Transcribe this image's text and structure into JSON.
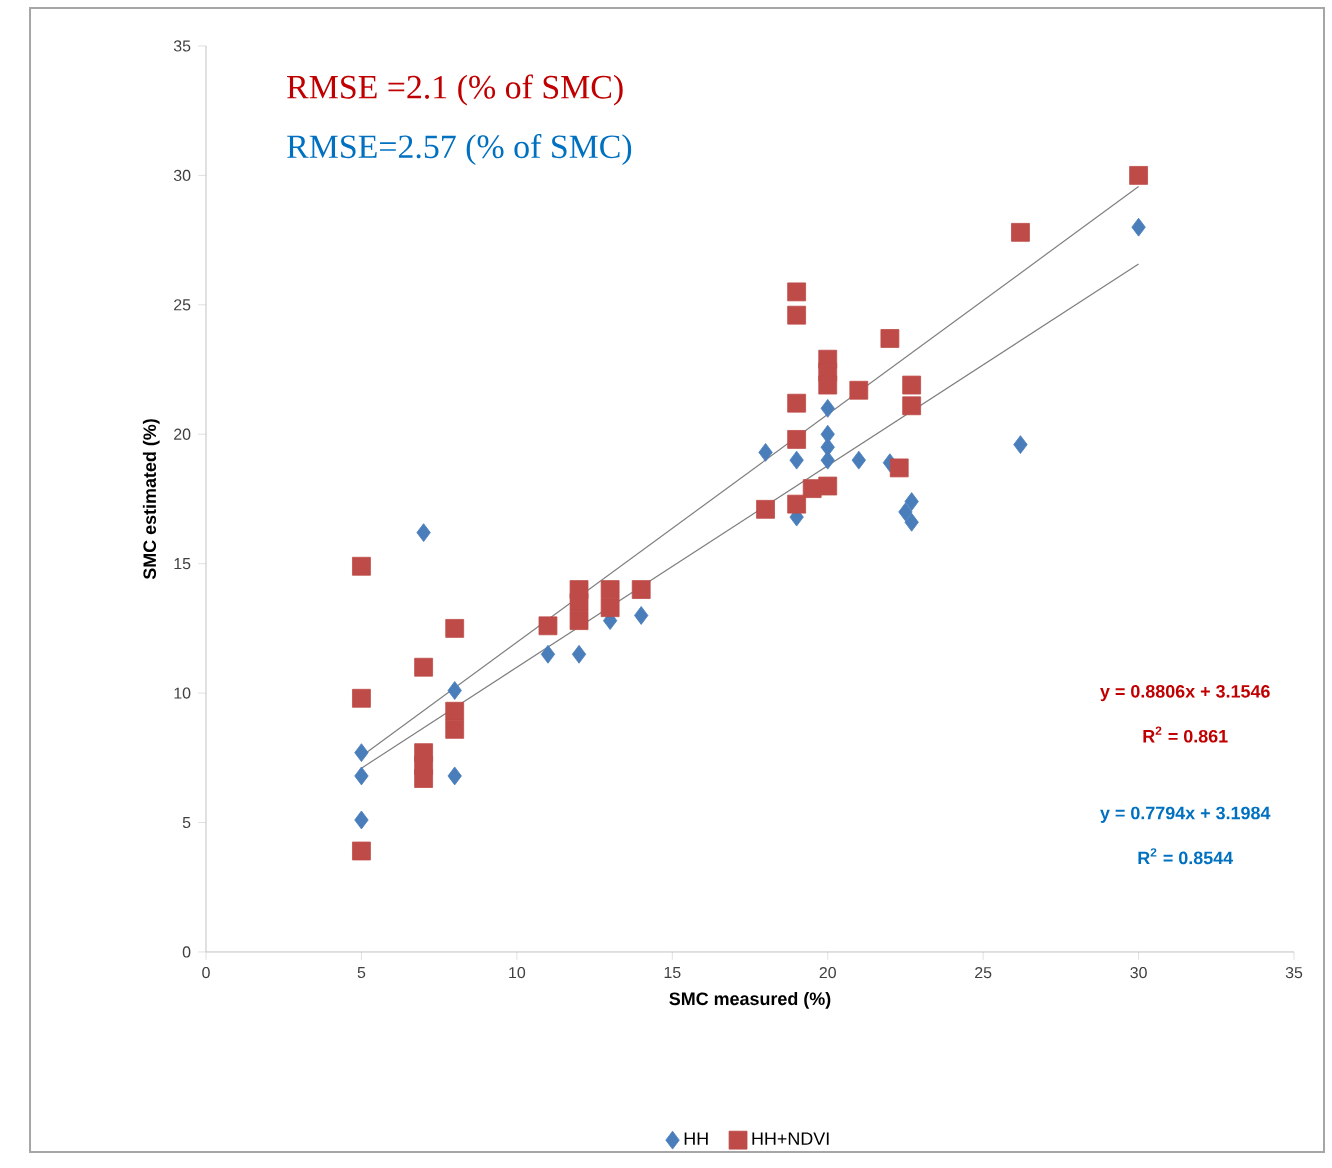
{
  "chart_data": {
    "type": "scatter",
    "xlabel": "SMC measured (%)",
    "ylabel": "SMC estimated (%)",
    "xlim": [
      0,
      35
    ],
    "ylim": [
      0,
      35
    ],
    "xticks": [
      0,
      5,
      10,
      15,
      20,
      25,
      30,
      35
    ],
    "yticks": [
      0,
      5,
      10,
      15,
      20,
      25,
      30,
      35
    ],
    "legend": "bottom",
    "series": [
      {
        "name": "HH",
        "color": "#4a7ebb",
        "marker": "diamond",
        "x": [
          5,
          5,
          5,
          7,
          8,
          8,
          11,
          12,
          13,
          14,
          18,
          19,
          19,
          20,
          20,
          20,
          20,
          21,
          22,
          22.5,
          22.7,
          22.7,
          26.2,
          30
        ],
        "values": [
          7.7,
          6.8,
          5.1,
          16.2,
          10.1,
          6.8,
          11.5,
          11.5,
          12.8,
          13,
          19.3,
          19,
          16.8,
          19.5,
          20,
          21,
          19,
          19,
          18.9,
          17,
          16.6,
          17.4,
          19.6,
          28
        ]
      },
      {
        "name": "HH+NDVI",
        "color": "#be4b48",
        "marker": "square",
        "x": [
          5,
          5,
          5,
          7,
          7,
          7,
          7,
          8,
          8,
          8,
          11,
          12,
          12,
          12,
          13,
          13,
          14,
          18,
          19,
          19,
          19,
          19,
          19,
          19.5,
          20,
          20,
          20,
          20,
          21,
          22,
          22.3,
          22.7,
          22.7,
          26.2,
          30
        ],
        "values": [
          14.9,
          9.8,
          3.9,
          11,
          7.7,
          7.2,
          6.7,
          12.5,
          9.3,
          8.6,
          12.6,
          14,
          13.5,
          12.8,
          14,
          13.3,
          14,
          17.1,
          25.5,
          24.6,
          21.2,
          19.8,
          17.3,
          17.9,
          22.9,
          22.4,
          21.9,
          18,
          21.7,
          23.7,
          18.7,
          21.9,
          21.1,
          27.8,
          30
        ]
      },
      {
        "type": "line",
        "color": "#7f7f7f",
        "x": [
          5,
          30
        ],
        "values": [
          7.56,
          29.57
        ]
      },
      {
        "type": "line",
        "color": "#7f7f7f",
        "x": [
          5,
          30
        ],
        "values": [
          7.1,
          26.58
        ]
      }
    ],
    "annotations": [
      "RMSE =2.1 (% of SMC)",
      "RMSE=2.57 (% of SMC)",
      "y = 0.8806x + 3.1546",
      "R$^{2}$ = 0.861",
      "y = 0.7794x + 3.1984",
      "R$^{2}$ = 0.8544"
    ]
  }
}
